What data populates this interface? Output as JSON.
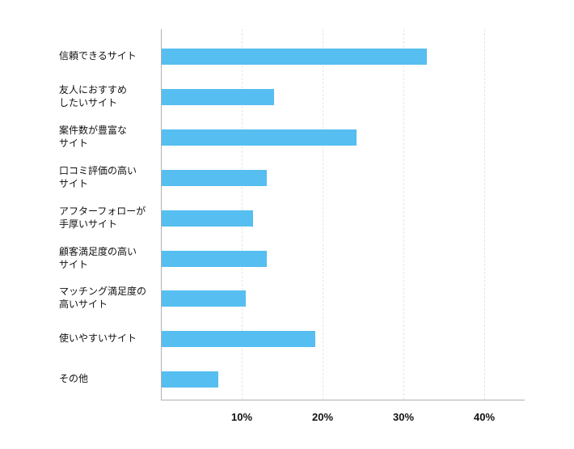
{
  "chart_data": {
    "type": "bar",
    "orientation": "horizontal",
    "title": "",
    "xlabel": "",
    "ylabel": "",
    "categories": [
      "信頼できるサイト",
      "友人におすすめ\nしたいサイト",
      "案件数が豊富な\nサイト",
      "口コミ評価の高い\nサイト",
      "アフターフォローが\n手厚いサイト",
      "顧客満足度の高い\nサイト",
      "マッチング満足度の\n高いサイト",
      "使いやすいサイト",
      "その他"
    ],
    "values": [
      32.8,
      13.9,
      24.1,
      13.0,
      11.3,
      13.0,
      10.4,
      19.0,
      7.0
    ],
    "xlim": [
      0,
      45
    ],
    "x_ticks": [
      "10%",
      "20%",
      "30%",
      "40%"
    ],
    "x_tick_values": [
      10,
      20,
      30,
      40
    ],
    "grid": "vertical dashed",
    "legend": "none",
    "bar_color": "#56bef0"
  }
}
